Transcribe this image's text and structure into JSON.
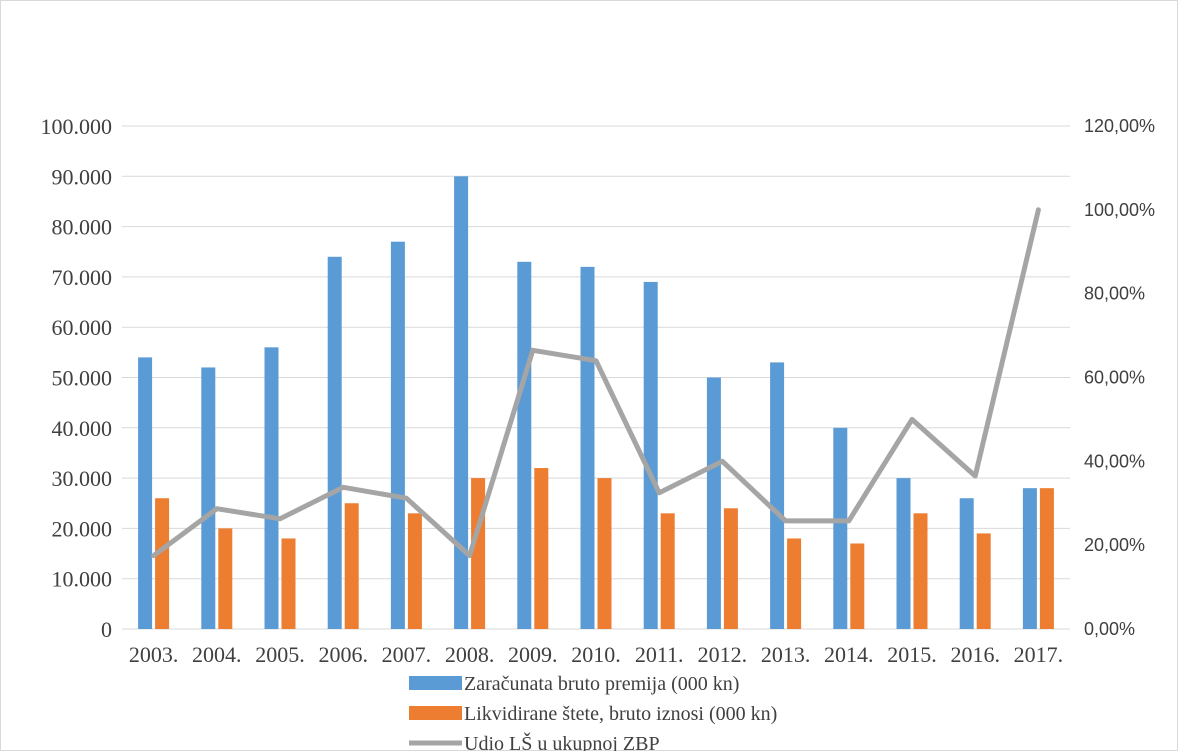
{
  "chart_data": {
    "type": "bar",
    "categories": [
      "2003.",
      "2004.",
      "2005.",
      "2006.",
      "2007.",
      "2008.",
      "2009.",
      "2010.",
      "2011.",
      "2012.",
      "2013.",
      "2014.",
      "2015.",
      "2016.",
      "2017."
    ],
    "series": [
      {
        "name": "Zaračunata bruto premija (000 kn)",
        "type": "bar",
        "axis": "left",
        "color": "#5b9bd5",
        "values": [
          54000,
          52000,
          56000,
          74000,
          77000,
          90000,
          73000,
          72000,
          69000,
          50000,
          53000,
          40000,
          30000,
          26000,
          28000
        ]
      },
      {
        "name": "Likvidirane štete, bruto iznosi (000 kn)",
        "type": "bar",
        "axis": "left",
        "color": "#ed7d31",
        "values": [
          26000,
          20000,
          18000,
          25000,
          23000,
          30000,
          32000,
          30000,
          23000,
          24000,
          18000,
          17000,
          23000,
          19000,
          28000
        ]
      },
      {
        "name": "Udio LŠ u ukupnoj ZBP",
        "type": "line",
        "axis": "right",
        "color": "#a5a5a5",
        "values": [
          17.5,
          28.7,
          26.3,
          33.8,
          31.2,
          17.5,
          66.5,
          64.0,
          32.5,
          40.0,
          25.8,
          25.8,
          50.0,
          36.5,
          100.0
        ]
      }
    ],
    "y_left": {
      "min": 0,
      "max": 100000,
      "ticks": [
        0,
        10000,
        20000,
        30000,
        40000,
        50000,
        60000,
        70000,
        80000,
        90000,
        100000
      ],
      "tick_labels": [
        "0",
        "10.000",
        "20.000",
        "30.000",
        "40.000",
        "50.000",
        "60.000",
        "70.000",
        "80.000",
        "90.000",
        "100.000"
      ]
    },
    "y_right": {
      "min": 0,
      "max": 120,
      "ticks": [
        0,
        20,
        40,
        60,
        80,
        100,
        120
      ],
      "tick_labels": [
        "0,00%",
        "20,00%",
        "40,00%",
        "60,00%",
        "80,00%",
        "100,00%",
        "120,00%"
      ]
    },
    "grid": true,
    "legend_position": "bottom",
    "gridline_color": "#d9d9d9"
  }
}
